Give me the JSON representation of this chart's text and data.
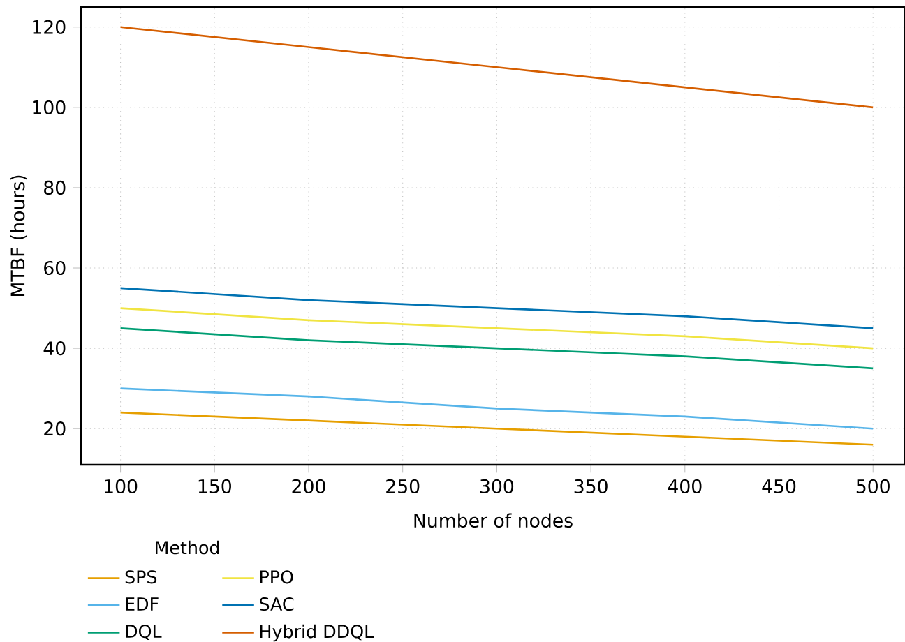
{
  "chart_data": {
    "type": "line",
    "xlabel": "Number of nodes",
    "ylabel": "MTBF (hours)",
    "legend_title": "Method",
    "x": [
      100,
      200,
      300,
      400,
      500
    ],
    "series": [
      {
        "name": "SPS",
        "color": "#e69f00",
        "values": [
          24,
          22,
          20,
          18,
          16
        ]
      },
      {
        "name": "EDF",
        "color": "#56b4e9",
        "values": [
          30,
          28,
          25,
          23,
          20
        ]
      },
      {
        "name": "DQL",
        "color": "#009e73",
        "values": [
          45,
          42,
          40,
          38,
          35
        ]
      },
      {
        "name": "PPO",
        "color": "#f0e442",
        "values": [
          50,
          47,
          45,
          43,
          40
        ]
      },
      {
        "name": "SAC",
        "color": "#0072b2",
        "values": [
          55,
          52,
          50,
          48,
          45
        ]
      },
      {
        "name": "Hybrid DDQL",
        "color": "#d55e00",
        "values": [
          120,
          115,
          110,
          105,
          100
        ]
      }
    ],
    "xlim": [
      79,
      517
    ],
    "ylim": [
      11,
      125
    ],
    "xticks": [
      100,
      150,
      200,
      250,
      300,
      350,
      400,
      450,
      500
    ],
    "yticks": [
      20,
      40,
      60,
      80,
      100,
      120
    ],
    "grid": true,
    "legend": "bottom left",
    "marker": "none",
    "line_style": "solid"
  }
}
